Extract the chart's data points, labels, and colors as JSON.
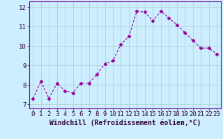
{
  "x": [
    0,
    1,
    2,
    3,
    4,
    5,
    6,
    7,
    8,
    9,
    10,
    11,
    12,
    13,
    14,
    15,
    16,
    17,
    18,
    19,
    20,
    21,
    22,
    23
  ],
  "y": [
    7.3,
    8.2,
    7.3,
    8.1,
    7.7,
    7.6,
    8.1,
    8.1,
    8.55,
    9.1,
    9.25,
    10.1,
    10.5,
    11.8,
    11.75,
    11.3,
    11.8,
    11.45,
    11.1,
    10.7,
    10.3,
    9.9,
    9.9,
    9.6
  ],
  "line_color": "#990099",
  "marker": "D",
  "marker_size": 2.5,
  "background_color": "#cceeff",
  "grid_color": "#aacccc",
  "xlabel": "Windchill (Refroidissement éolien,°C)",
  "xlim": [
    -0.5,
    23.5
  ],
  "ylim": [
    6.8,
    12.3
  ],
  "yticks": [
    7,
    8,
    9,
    10,
    11,
    12
  ],
  "xticks": [
    0,
    1,
    2,
    3,
    4,
    5,
    6,
    7,
    8,
    9,
    10,
    11,
    12,
    13,
    14,
    15,
    16,
    17,
    18,
    19,
    20,
    21,
    22,
    23
  ],
  "xlabel_fontsize": 7.0,
  "tick_fontsize": 6.5,
  "border_color": "#7700aa",
  "label_color": "#330033"
}
